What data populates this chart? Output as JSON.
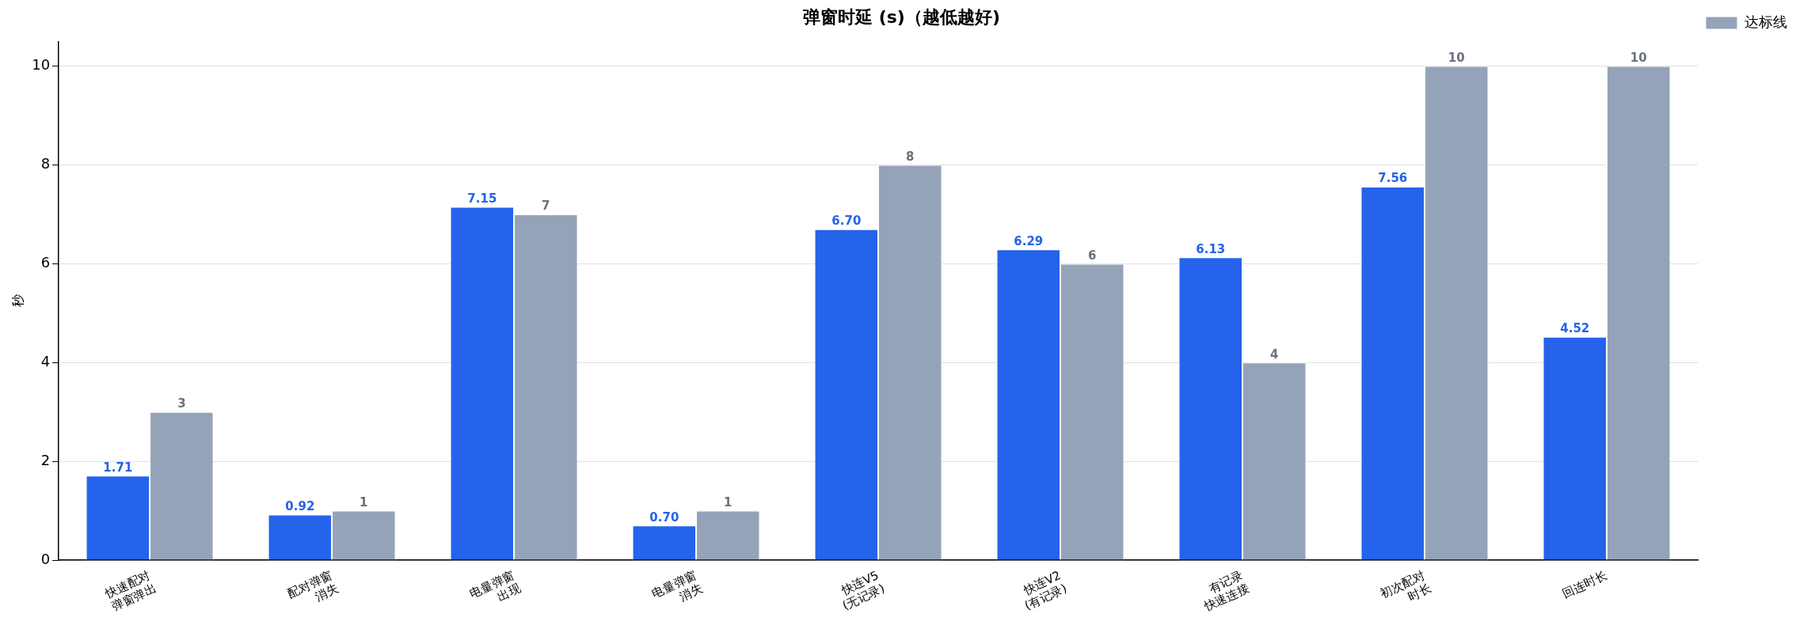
{
  "chart_data": {
    "type": "bar",
    "title": "弹窗时延 (s)（越低越好)",
    "ylabel": "秒",
    "categories": [
      "快速配对\n弹窗弹出",
      "配对弹窗\n消失",
      "电量弹窗\n出现",
      "电量弹窗\n消失",
      "快连V5\n(无记录)",
      "快连V2\n(有记录)",
      "有记录\n快速连接",
      "初次配对\n时长",
      "回连时长"
    ],
    "series": [
      {
        "color": "#2563eb",
        "values": [
          1.71,
          0.92,
          7.15,
          0.7,
          6.7,
          6.29,
          6.13,
          7.56,
          4.52
        ],
        "value_labels": [
          "1.71",
          "0.92",
          "7.15",
          "0.70",
          "6.70",
          "6.29",
          "6.13",
          "7.56",
          "4.52"
        ]
      },
      {
        "name": "达标线",
        "color": "#94a3b8",
        "values": [
          3,
          1,
          7,
          1,
          8,
          6,
          4,
          10,
          10
        ],
        "value_labels": [
          "3",
          "1",
          "7",
          "1",
          "8",
          "6",
          "4",
          "10",
          "10"
        ]
      }
    ],
    "ylim": [
      0,
      10.5
    ],
    "yticks": [
      0,
      2,
      4,
      6,
      8,
      10
    ],
    "grid": "y",
    "legend": "top right"
  }
}
